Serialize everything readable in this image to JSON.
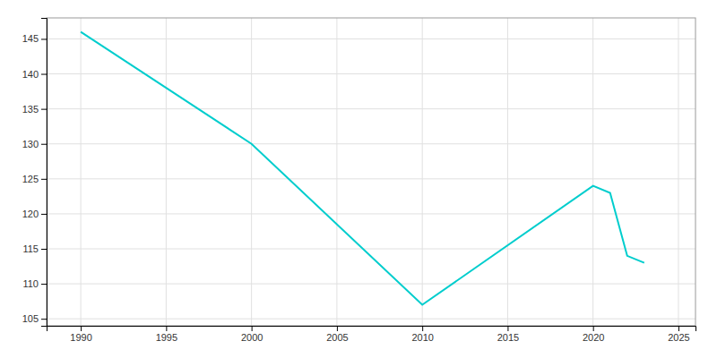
{
  "chart_data": {
    "type": "line",
    "x": [
      1990,
      2000,
      2010,
      2020,
      2021,
      2022,
      2023
    ],
    "values": [
      146,
      130,
      107,
      124,
      123,
      114,
      113
    ],
    "color": "#00CDCD",
    "xlim": [
      1988,
      2026
    ],
    "ylim": [
      104,
      148
    ],
    "xticks": [
      1990,
      1995,
      2000,
      2005,
      2010,
      2015,
      2020,
      2025
    ],
    "yticks": [
      105,
      110,
      115,
      120,
      125,
      130,
      135,
      140,
      145
    ],
    "grid": true
  }
}
